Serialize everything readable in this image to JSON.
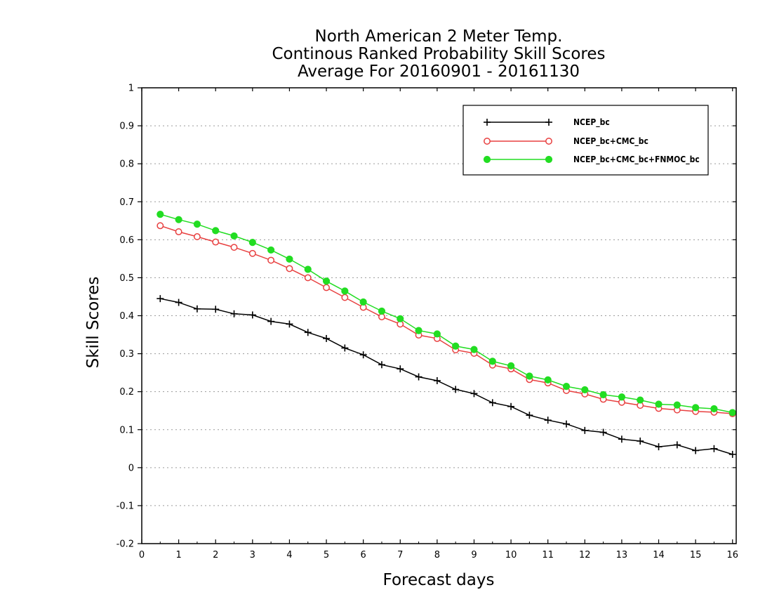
{
  "chart_data": {
    "type": "line",
    "title": [
      "North American 2 Meter Temp.",
      "Continous Ranked Probability Skill Scores",
      "Average For 20160901 - 20161130"
    ],
    "xlabel": "Forecast days",
    "ylabel": "Skill Scores",
    "xlim": [
      0,
      16.1
    ],
    "ylim": [
      -0.2,
      1
    ],
    "xticks": [
      0,
      1,
      2,
      3,
      4,
      5,
      6,
      7,
      8,
      9,
      10,
      11,
      12,
      13,
      14,
      15,
      16
    ],
    "yticks": [
      -0.2,
      -0.1,
      0,
      0.1,
      0.2,
      0.3,
      0.4,
      0.5,
      0.6,
      0.7,
      0.8,
      0.9,
      1
    ],
    "ytick_labels": [
      "-0.2",
      "-0.1",
      "0",
      "0.1",
      "0.2",
      "0.3",
      "0.4",
      "0.5",
      "0.6",
      "0.7",
      "0.8",
      "0.9",
      "1"
    ],
    "grid": true,
    "legend_position": "top-right",
    "x": [
      0.5,
      1,
      1.5,
      2,
      2.5,
      3,
      3.5,
      4,
      4.5,
      5,
      5.5,
      6,
      6.5,
      7,
      7.5,
      8,
      8.5,
      9,
      9.5,
      10,
      10.5,
      11,
      11.5,
      12,
      12.5,
      13,
      13.5,
      14,
      14.5,
      15,
      15.5,
      16
    ],
    "series": [
      {
        "name": "NCEP_bc",
        "color": "#000000",
        "marker": "plus",
        "values": [
          0.445,
          0.435,
          0.418,
          0.417,
          0.405,
          0.402,
          0.385,
          0.378,
          0.356,
          0.34,
          0.315,
          0.297,
          0.271,
          0.26,
          0.239,
          0.229,
          0.206,
          0.195,
          0.171,
          0.161,
          0.138,
          0.125,
          0.115,
          0.098,
          0.093,
          0.075,
          0.07,
          0.055,
          0.06,
          0.045,
          0.05,
          0.035
        ]
      },
      {
        "name": "NCEP_bc+CMC_bc",
        "color": "#e84040",
        "marker": "open-circle",
        "values": [
          0.637,
          0.621,
          0.608,
          0.594,
          0.58,
          0.564,
          0.546,
          0.524,
          0.5,
          0.474,
          0.448,
          0.422,
          0.397,
          0.378,
          0.349,
          0.34,
          0.31,
          0.301,
          0.27,
          0.26,
          0.232,
          0.223,
          0.203,
          0.194,
          0.18,
          0.172,
          0.164,
          0.156,
          0.152,
          0.148,
          0.146,
          0.142
        ]
      },
      {
        "name": "NCEP_bc+CMC_bc+FNMOC_bc",
        "color": "#22dd22",
        "marker": "filled-circle",
        "values": [
          0.667,
          0.653,
          0.641,
          0.624,
          0.61,
          0.593,
          0.573,
          0.549,
          0.522,
          0.491,
          0.465,
          0.436,
          0.412,
          0.392,
          0.361,
          0.352,
          0.32,
          0.311,
          0.28,
          0.268,
          0.241,
          0.231,
          0.214,
          0.205,
          0.192,
          0.186,
          0.178,
          0.167,
          0.165,
          0.158,
          0.155,
          0.145
        ]
      }
    ]
  }
}
